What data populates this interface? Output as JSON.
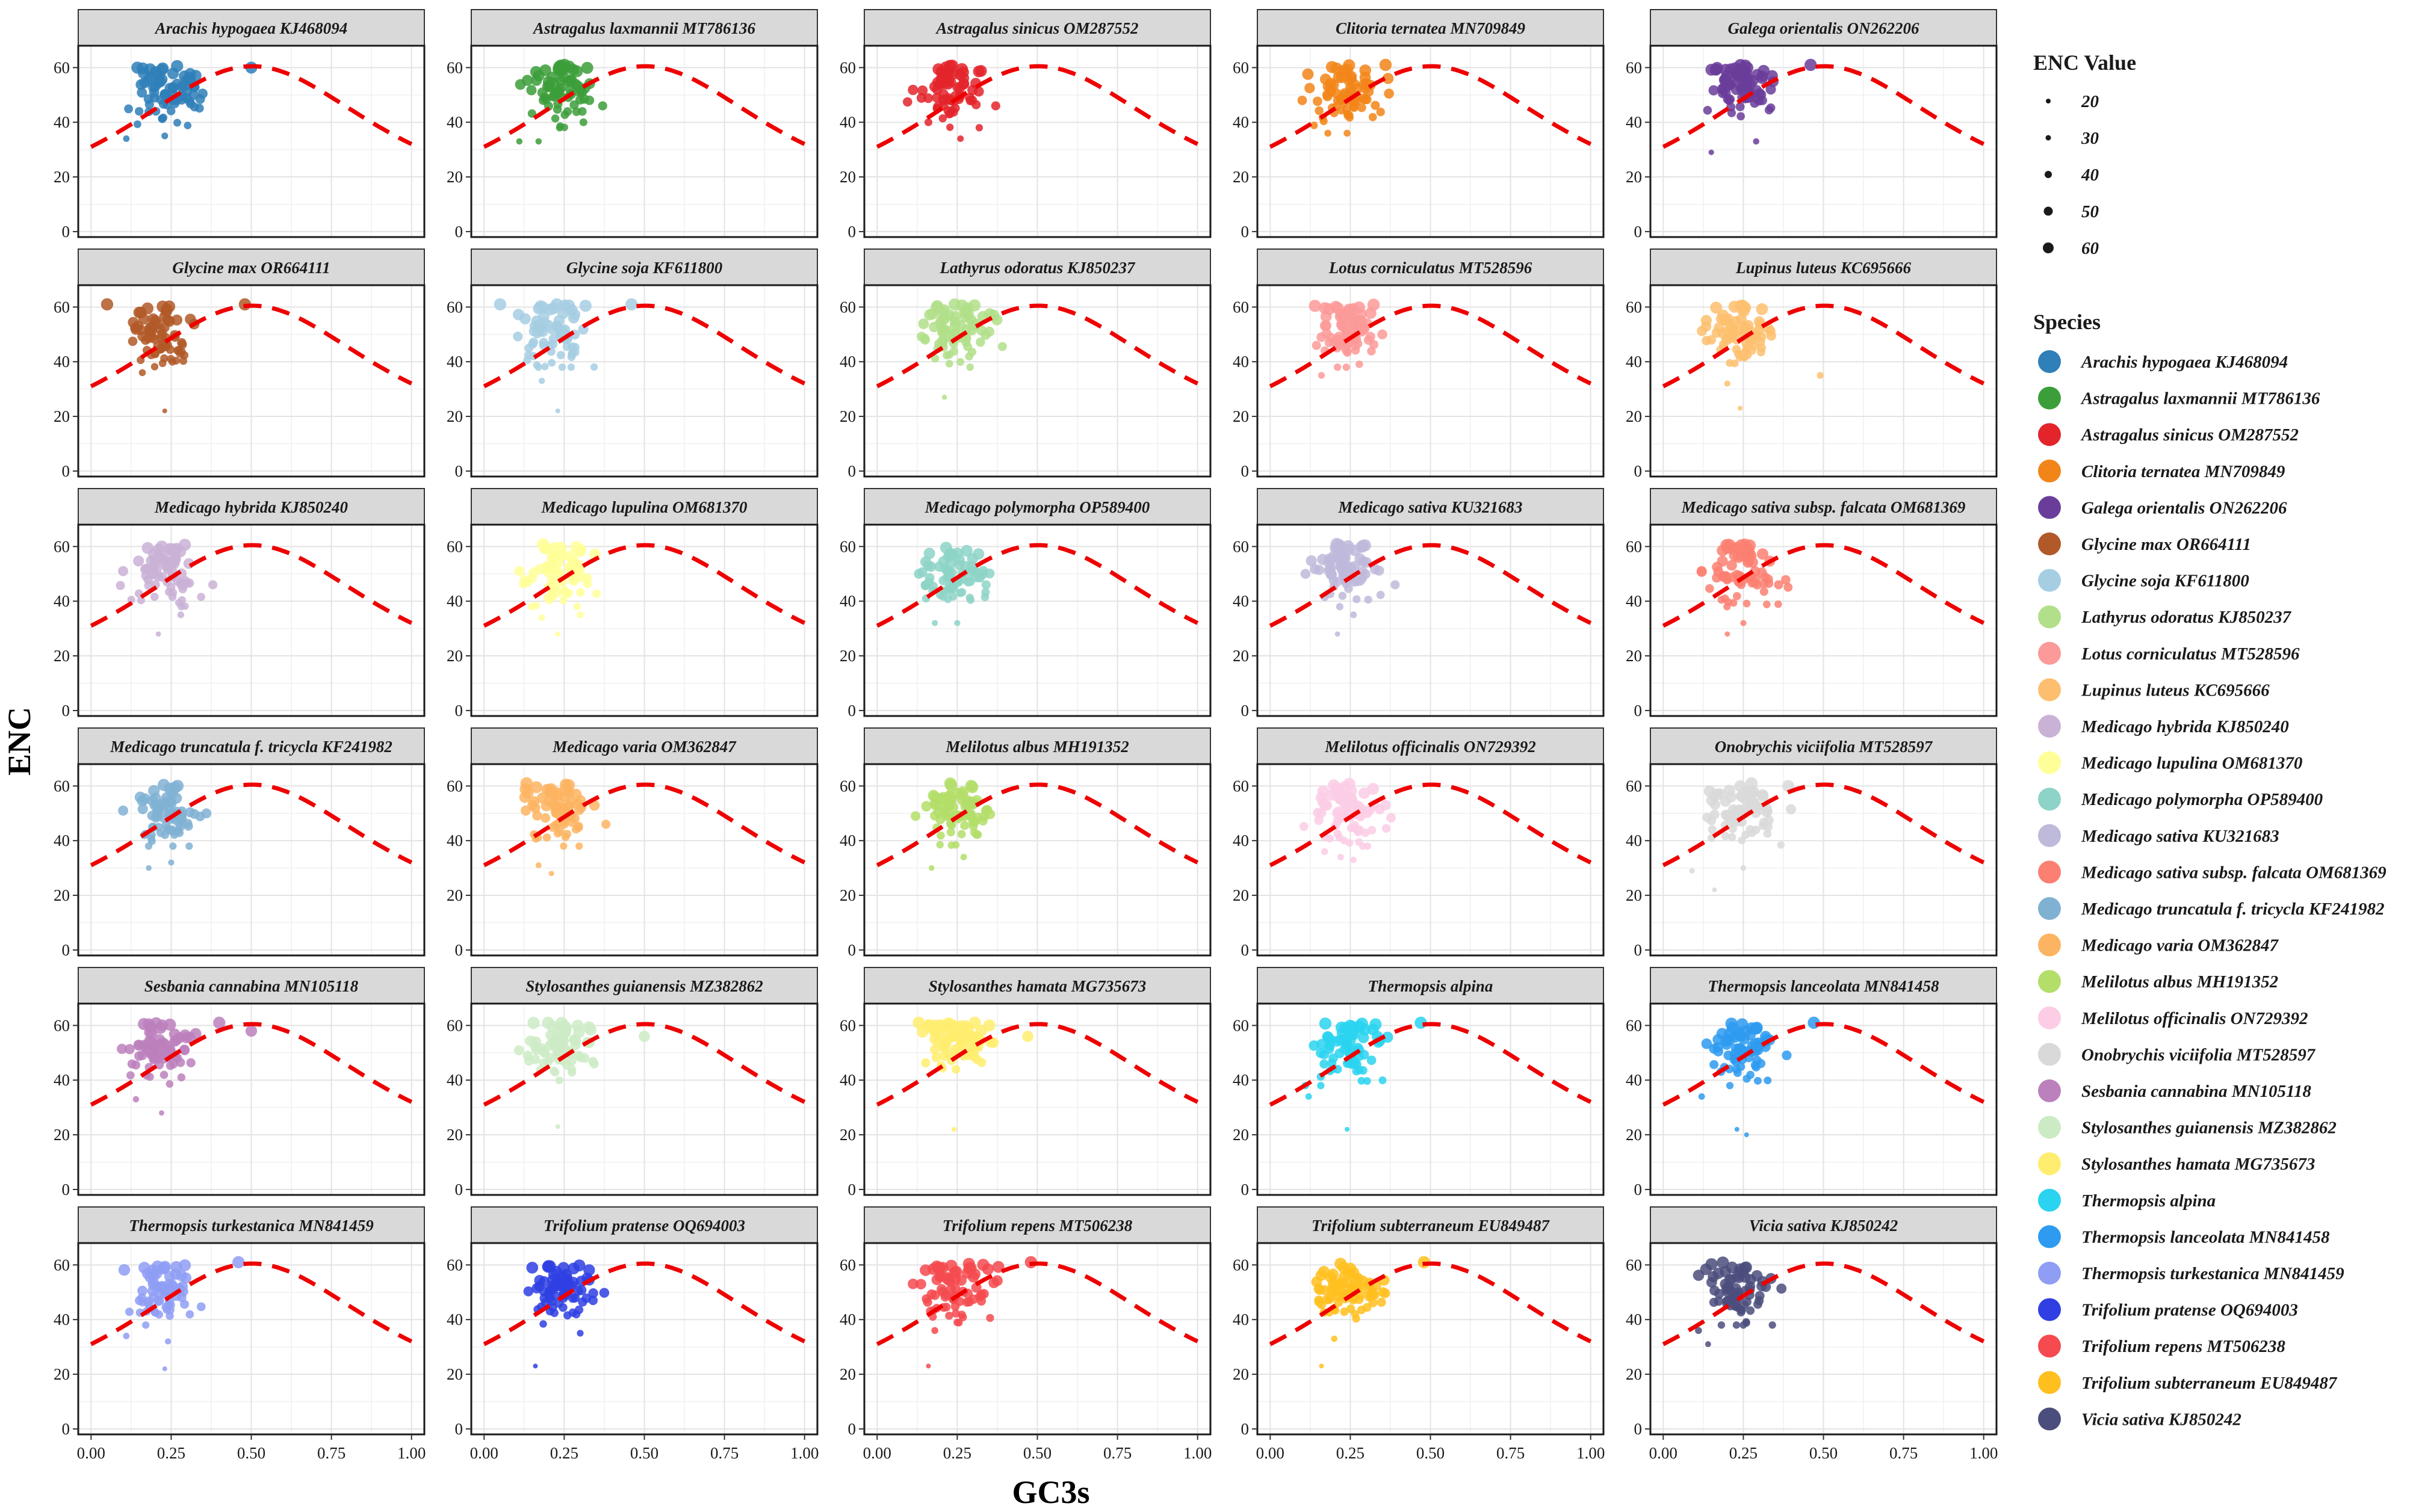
{
  "chart_data": {
    "type": "scatter",
    "title": "",
    "xlabel": "GC3s",
    "ylabel": "ENC",
    "xlim": [
      -0.04,
      1.04
    ],
    "ylim": [
      -2,
      68
    ],
    "x_ticks": [
      "0.00",
      "0.25",
      "0.50",
      "0.75",
      "1.00"
    ],
    "y_ticks": [
      "0",
      "20",
      "40",
      "60"
    ],
    "x_tick_values": [
      0,
      0.25,
      0.5,
      0.75,
      1.0
    ],
    "y_tick_values": [
      0,
      20,
      40,
      60
    ],
    "grid": true,
    "expected_curve": {
      "label": "Expected ENC curve",
      "color": "#ee0000",
      "style": "dashed"
    },
    "legend_size": {
      "title": "ENC Value",
      "entries": [
        "20",
        "30",
        "40",
        "50",
        "60"
      ],
      "values": [
        20,
        30,
        40,
        50,
        60
      ]
    },
    "legend_color": {
      "title": "Species",
      "placement": "right"
    },
    "panels": [
      {
        "name": "Arachis hypogaea KJ468094",
        "color": "#2f7fb8",
        "x_center": 0.24,
        "x_spread": 0.055,
        "enc_mean": 51,
        "points": [
          [
            0.5,
            60
          ],
          [
            0.11,
            34
          ],
          [
            0.23,
            35
          ],
          [
            0.32,
            53
          ],
          [
            0.15,
            44
          ]
        ]
      },
      {
        "name": "Astragalus laxmannii MT786136",
        "color": "#3c9e3a",
        "x_center": 0.24,
        "x_spread": 0.05,
        "enc_mean": 52,
        "points": [
          [
            0.11,
            33
          ],
          [
            0.17,
            33
          ],
          [
            0.37,
            46
          ],
          [
            0.31,
            40
          ]
        ]
      },
      {
        "name": "Astragalus sinicus OM287552",
        "color": "#e3242b",
        "x_center": 0.24,
        "x_spread": 0.05,
        "enc_mean": 51,
        "points": [
          [
            0.26,
            34
          ],
          [
            0.37,
            46
          ],
          [
            0.16,
            40
          ]
        ]
      },
      {
        "name": "Clitoria ternatea MN709849",
        "color": "#f28519",
        "x_center": 0.24,
        "x_spread": 0.06,
        "enc_mean": 50,
        "points": [
          [
            0.1,
            48
          ],
          [
            0.36,
            61
          ],
          [
            0.18,
            36
          ],
          [
            0.24,
            36
          ]
        ]
      },
      {
        "name": "Galega orientalis ON262206",
        "color": "#6a3d9a",
        "x_center": 0.23,
        "x_spread": 0.05,
        "enc_mean": 52,
        "points": [
          [
            0.46,
            61
          ],
          [
            0.15,
            29
          ],
          [
            0.29,
            33
          ],
          [
            0.34,
            57
          ]
        ]
      },
      {
        "name": "Glycine max OR664111",
        "color": "#b15928",
        "x_center": 0.22,
        "x_spread": 0.05,
        "enc_mean": 50,
        "points": [
          [
            0.48,
            61
          ],
          [
            0.05,
            61
          ],
          [
            0.23,
            22
          ],
          [
            0.16,
            36
          ]
        ]
      },
      {
        "name": "Glycine soja KF611800",
        "color": "#a6cee3",
        "x_center": 0.22,
        "x_spread": 0.05,
        "enc_mean": 50,
        "points": [
          [
            0.46,
            61
          ],
          [
            0.23,
            22
          ],
          [
            0.18,
            33
          ],
          [
            0.05,
            61
          ]
        ]
      },
      {
        "name": "Lathyrus odoratus KJ850237",
        "color": "#b2df8a",
        "x_center": 0.25,
        "x_spread": 0.05,
        "enc_mean": 52,
        "points": [
          [
            0.21,
            27
          ],
          [
            0.35,
            51
          ],
          [
            0.15,
            48
          ],
          [
            0.29,
            38
          ]
        ]
      },
      {
        "name": "Lotus corniculatus MT528596",
        "color": "#fb9a99",
        "x_center": 0.24,
        "x_spread": 0.05,
        "enc_mean": 51,
        "points": [
          [
            0.16,
            35
          ],
          [
            0.35,
            50
          ],
          [
            0.21,
            38
          ]
        ]
      },
      {
        "name": "Lupinus luteus KC695666",
        "color": "#fdbf6f",
        "x_center": 0.24,
        "x_spread": 0.05,
        "enc_mean": 51,
        "points": [
          [
            0.49,
            35
          ],
          [
            0.24,
            23
          ],
          [
            0.15,
            48
          ],
          [
            0.2,
            32
          ]
        ]
      },
      {
        "name": "Medicago hybrida KJ850240",
        "color": "#cab2d6",
        "x_center": 0.23,
        "x_spread": 0.05,
        "enc_mean": 51,
        "points": [
          [
            0.1,
            51
          ],
          [
            0.38,
            46
          ],
          [
            0.21,
            28
          ],
          [
            0.28,
            35
          ]
        ]
      },
      {
        "name": "Medicago lupulina OM681370",
        "color": "#ffff99",
        "x_center": 0.24,
        "x_spread": 0.05,
        "enc_mean": 51,
        "points": [
          [
            0.11,
            51
          ],
          [
            0.23,
            28
          ],
          [
            0.18,
            34
          ],
          [
            0.3,
            35
          ]
        ]
      },
      {
        "name": "Medicago polymorpha OP589400",
        "color": "#8dd3c7",
        "x_center": 0.24,
        "x_spread": 0.05,
        "enc_mean": 50,
        "points": [
          [
            0.13,
            50
          ],
          [
            0.18,
            32
          ],
          [
            0.25,
            32
          ],
          [
            0.34,
            46
          ]
        ]
      },
      {
        "name": "Medicago sativa KU321683",
        "color": "#bebada",
        "x_center": 0.23,
        "x_spread": 0.05,
        "enc_mean": 51,
        "points": [
          [
            0.11,
            50
          ],
          [
            0.39,
            46
          ],
          [
            0.21,
            28
          ],
          [
            0.26,
            35
          ]
        ]
      },
      {
        "name": "Medicago sativa subsp. falcata OM681369",
        "color": "#fb8072",
        "x_center": 0.24,
        "x_spread": 0.05,
        "enc_mean": 51,
        "points": [
          [
            0.12,
            51
          ],
          [
            0.36,
            46
          ],
          [
            0.2,
            28
          ],
          [
            0.25,
            32
          ]
        ]
      },
      {
        "name": "Medicago truncatula f. tricycla KF241982",
        "color": "#80b1d3",
        "x_center": 0.23,
        "x_spread": 0.05,
        "enc_mean": 50,
        "points": [
          [
            0.1,
            51
          ],
          [
            0.36,
            50
          ],
          [
            0.18,
            30
          ],
          [
            0.25,
            32
          ]
        ]
      },
      {
        "name": "Medicago varia OM362847",
        "color": "#fdb462",
        "x_center": 0.23,
        "x_spread": 0.05,
        "enc_mean": 51,
        "points": [
          [
            0.13,
            51
          ],
          [
            0.38,
            46
          ],
          [
            0.21,
            28
          ],
          [
            0.17,
            31
          ]
        ]
      },
      {
        "name": "Melilotus albus MH191352",
        "color": "#b3de69",
        "x_center": 0.25,
        "x_spread": 0.05,
        "enc_mean": 52,
        "points": [
          [
            0.17,
            30
          ],
          [
            0.34,
            51
          ],
          [
            0.27,
            34
          ],
          [
            0.12,
            49
          ]
        ]
      },
      {
        "name": "Melilotus officinalis ON729392",
        "color": "#fccde5",
        "x_center": 0.24,
        "x_spread": 0.05,
        "enc_mean": 51,
        "points": [
          [
            0.26,
            33
          ],
          [
            0.36,
            53
          ],
          [
            0.17,
            36
          ],
          [
            0.22,
            34
          ]
        ]
      },
      {
        "name": "Onobrychis viciifolia MT528597",
        "color": "#d9d9d9",
        "x_center": 0.24,
        "x_spread": 0.06,
        "enc_mean": 51,
        "points": [
          [
            0.09,
            29
          ],
          [
            0.16,
            22
          ],
          [
            0.25,
            30
          ],
          [
            0.39,
            60
          ]
        ]
      },
      {
        "name": "Sesbania cannabina MN105118",
        "color": "#bc80bd",
        "x_center": 0.22,
        "x_spread": 0.05,
        "enc_mean": 51,
        "points": [
          [
            0.4,
            61
          ],
          [
            0.22,
            28
          ],
          [
            0.14,
            33
          ],
          [
            0.5,
            58
          ]
        ]
      },
      {
        "name": "Stylosanthes guianensis MZ382862",
        "color": "#ccebc5",
        "x_center": 0.24,
        "x_spread": 0.05,
        "enc_mean": 53,
        "points": [
          [
            0.5,
            56
          ],
          [
            0.23,
            23
          ],
          [
            0.14,
            47
          ]
        ]
      },
      {
        "name": "Stylosanthes hamata MG735673",
        "color": "#ffed6f",
        "x_center": 0.25,
        "x_spread": 0.05,
        "enc_mean": 54,
        "points": [
          [
            0.13,
            61
          ],
          [
            0.47,
            56
          ],
          [
            0.24,
            22
          ],
          [
            0.18,
            55
          ]
        ]
      },
      {
        "name": "Thermopsis alpina",
        "color": "#2ad3f0",
        "x_center": 0.25,
        "x_spread": 0.05,
        "enc_mean": 51,
        "points": [
          [
            0.47,
            61
          ],
          [
            0.24,
            22
          ],
          [
            0.12,
            34
          ],
          [
            0.11,
            38
          ]
        ]
      },
      {
        "name": "Thermopsis lanceolata MN841458",
        "color": "#2e9bf0",
        "x_center": 0.25,
        "x_spread": 0.05,
        "enc_mean": 51,
        "points": [
          [
            0.47,
            61
          ],
          [
            0.26,
            20
          ],
          [
            0.23,
            22
          ],
          [
            0.12,
            34
          ]
        ]
      },
      {
        "name": "Thermopsis turkestanica MN841459",
        "color": "#8f9df5",
        "x_center": 0.23,
        "x_spread": 0.05,
        "enc_mean": 51,
        "points": [
          [
            0.46,
            61
          ],
          [
            0.23,
            22
          ],
          [
            0.24,
            32
          ],
          [
            0.11,
            34
          ]
        ]
      },
      {
        "name": "Trifolium pratense OQ694003",
        "color": "#2f3fe3",
        "x_center": 0.24,
        "x_spread": 0.05,
        "enc_mean": 52,
        "points": [
          [
            0.16,
            23
          ],
          [
            0.3,
            35
          ],
          [
            0.34,
            47
          ]
        ]
      },
      {
        "name": "Trifolium repens MT506238",
        "color": "#f54a4f",
        "x_center": 0.25,
        "x_spread": 0.06,
        "enc_mean": 51,
        "points": [
          [
            0.16,
            23
          ],
          [
            0.48,
            61
          ],
          [
            0.18,
            36
          ]
        ]
      },
      {
        "name": "Trifolium subterraneum EU849487",
        "color": "#ffbf1f",
        "x_center": 0.25,
        "x_spread": 0.06,
        "enc_mean": 51,
        "points": [
          [
            0.16,
            23
          ],
          [
            0.48,
            61
          ],
          [
            0.2,
            33
          ]
        ]
      },
      {
        "name": "Vicia sativa KJ850242",
        "color": "#4b4e7c",
        "x_center": 0.23,
        "x_spread": 0.05,
        "enc_mean": 50,
        "points": [
          [
            0.14,
            31
          ],
          [
            0.11,
            36
          ],
          [
            0.32,
            52
          ],
          [
            0.25,
            38
          ]
        ]
      }
    ]
  }
}
